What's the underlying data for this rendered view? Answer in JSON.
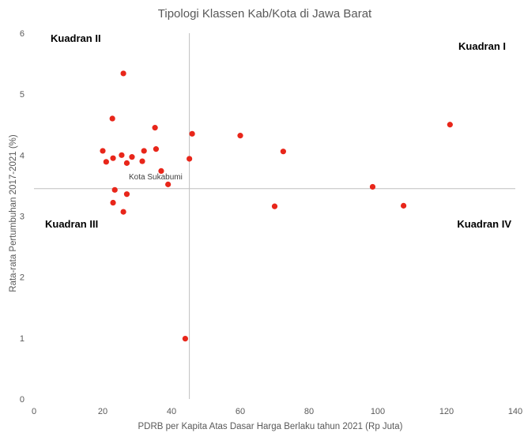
{
  "chart_data": {
    "type": "scatter",
    "title": "Tipologi Klassen Kab/Kota di Jawa Barat",
    "xlabel": "PDRB per Kapita Atas Dasar Harga Berlaku tahun 2021 (Rp Juta)",
    "ylabel": "Rata-rata Pertumbuhan 2017-2021 (%)",
    "xlim": [
      0,
      140
    ],
    "ylim": [
      0,
      6
    ],
    "x_ticks": [
      "0",
      "20",
      "40",
      "60",
      "80",
      "100",
      "120",
      "140"
    ],
    "y_ticks": [
      "0",
      "1",
      "2",
      "3",
      "4",
      "5",
      "6"
    ],
    "grid": false,
    "point_color": "#e8261a",
    "reference_lines": {
      "x": 45.2,
      "y": 3.45
    },
    "quadrant_labels": [
      "Kuadran I",
      "Kuadran II",
      "Kuadran III",
      "Kuadran IV"
    ],
    "annotation": {
      "text": "Kota Sukabumi",
      "x": 39,
      "y": 3.52
    },
    "points": [
      {
        "x": 26.0,
        "y": 5.34
      },
      {
        "x": 22.8,
        "y": 4.6
      },
      {
        "x": 35.2,
        "y": 4.45
      },
      {
        "x": 20.0,
        "y": 4.07
      },
      {
        "x": 21.0,
        "y": 3.89
      },
      {
        "x": 23.0,
        "y": 3.95
      },
      {
        "x": 25.5,
        "y": 4.0
      },
      {
        "x": 27.0,
        "y": 3.87
      },
      {
        "x": 28.5,
        "y": 3.97
      },
      {
        "x": 31.5,
        "y": 3.9
      },
      {
        "x": 32.0,
        "y": 4.07
      },
      {
        "x": 35.5,
        "y": 4.1
      },
      {
        "x": 37.0,
        "y": 3.74
      },
      {
        "x": 39.0,
        "y": 3.52
      },
      {
        "x": 23.5,
        "y": 3.43
      },
      {
        "x": 27.0,
        "y": 3.36
      },
      {
        "x": 23.0,
        "y": 3.22
      },
      {
        "x": 26.0,
        "y": 3.07
      },
      {
        "x": 45.2,
        "y": 3.94
      },
      {
        "x": 46.0,
        "y": 4.35
      },
      {
        "x": 60.0,
        "y": 4.32
      },
      {
        "x": 72.5,
        "y": 4.06
      },
      {
        "x": 70.0,
        "y": 3.16
      },
      {
        "x": 98.5,
        "y": 3.48
      },
      {
        "x": 107.5,
        "y": 3.17
      },
      {
        "x": 121.0,
        "y": 4.5
      },
      {
        "x": 44.0,
        "y": 0.99
      }
    ]
  }
}
